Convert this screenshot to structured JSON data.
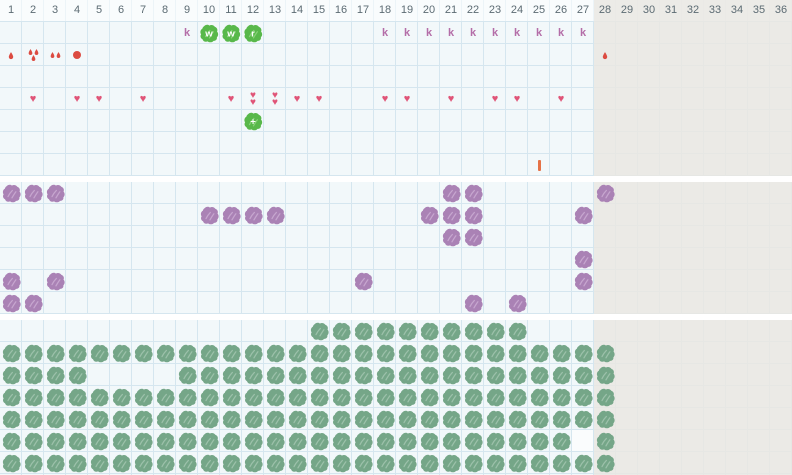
{
  "header": {
    "columns": [
      "1",
      "2",
      "3",
      "4",
      "5",
      "6",
      "7",
      "8",
      "9",
      "10",
      "11",
      "12",
      "13",
      "14",
      "15",
      "16",
      "17",
      "18",
      "19",
      "20",
      "21",
      "22",
      "23",
      "24",
      "25",
      "26",
      "27",
      "28",
      "29",
      "30",
      "31",
      "32",
      "33",
      "34",
      "35",
      "36"
    ]
  },
  "colors": {
    "cell_bg": "#f2f8fa",
    "grid_line": "#d5e6ef",
    "disabled_bg": "#ecebe8",
    "gap_bg": "#ffffff",
    "header_text": "#5c6b73",
    "k_label": "#b46ea8",
    "bright_green": "#58b84a",
    "bright_green_streak": "#8fd57f",
    "heart": "#e05578",
    "droplet": "#dc4b41",
    "orange_marker": "#e57247",
    "purple": "#aa82b5",
    "purple_streak": "#cbadd3",
    "sage": "#75a688",
    "sage_streak": "#a3c6b0",
    "plant_letter_text": "#ffffff"
  },
  "grid": {
    "columns": 36,
    "disabled_from_column": 28,
    "sections": [
      {
        "name": "top-calendar",
        "rows": [
          [
            {
              "type": "k-label",
              "text": "k",
              "cols": [
                9
              ]
            },
            {
              "type": "bright-plant",
              "text": "w",
              "cols": [
                10,
                11
              ]
            },
            {
              "type": "bright-plant",
              "text": "r",
              "cols": [
                12
              ]
            },
            {
              "type": "k-label",
              "text": "k",
              "cols": [
                18,
                19,
                20,
                21,
                22,
                23,
                24,
                25,
                26,
                27
              ]
            }
          ],
          [
            {
              "type": "droplet",
              "cols": [
                1
              ]
            },
            {
              "type": "droplet-triple",
              "cols": [
                2
              ]
            },
            {
              "type": "droplet-double",
              "cols": [
                3
              ]
            },
            {
              "type": "dot",
              "cols": [
                4
              ]
            },
            {
              "type": "droplet",
              "cols": [
                28
              ]
            }
          ],
          [],
          [
            {
              "type": "heart",
              "cols": [
                2,
                4,
                5,
                7,
                11,
                14,
                15,
                18,
                19,
                21,
                23,
                24,
                26
              ]
            },
            {
              "type": "heart-double",
              "cols": [
                12,
                13
              ]
            }
          ],
          [
            {
              "type": "bright-plant",
              "text": "+",
              "cols": [
                12
              ]
            }
          ],
          [],
          [
            {
              "type": "orange-marker",
              "cols": [
                25
              ]
            }
          ]
        ]
      },
      {
        "name": "middle-bed",
        "rows": [
          [
            {
              "type": "purple-plant",
              "cols": [
                1,
                2,
                3,
                21,
                22,
                28
              ]
            }
          ],
          [
            {
              "type": "purple-plant",
              "cols": [
                10,
                11,
                12,
                13,
                20,
                21,
                22,
                27
              ]
            }
          ],
          [
            {
              "type": "purple-plant",
              "cols": [
                21,
                22
              ]
            }
          ],
          [
            {
              "type": "purple-plant",
              "cols": [
                27
              ]
            }
          ],
          [
            {
              "type": "purple-plant",
              "cols": [
                1,
                3,
                17,
                27
              ]
            }
          ],
          [
            {
              "type": "purple-plant",
              "cols": [
                1,
                2,
                22,
                24
              ]
            }
          ]
        ]
      },
      {
        "name": "bottom-bed",
        "rows": [
          [
            {
              "type": "sage-plant",
              "cols": [
                15,
                16,
                17,
                18,
                19,
                20,
                21,
                22,
                23,
                24
              ]
            }
          ],
          [
            {
              "type": "sage-plant",
              "cols": [
                1,
                2,
                3,
                4,
                5,
                6,
                7,
                8,
                9,
                10,
                11,
                12,
                13,
                14,
                15,
                16,
                17,
                18,
                19,
                20,
                21,
                22,
                23,
                24,
                25,
                26,
                27,
                28
              ]
            }
          ],
          [
            {
              "type": "sage-plant",
              "cols": [
                1,
                2,
                3,
                4,
                9,
                10,
                11,
                12,
                13,
                14,
                15,
                16,
                17,
                18,
                19,
                20,
                21,
                22,
                23,
                24,
                25,
                26,
                27,
                28
              ]
            }
          ],
          [
            {
              "type": "sage-plant",
              "cols": [
                1,
                2,
                3,
                4,
                5,
                6,
                7,
                8,
                9,
                10,
                11,
                12,
                13,
                14,
                15,
                16,
                17,
                18,
                19,
                20,
                21,
                22,
                23,
                24,
                25,
                26,
                27,
                28
              ]
            }
          ],
          [
            {
              "type": "sage-plant",
              "cols": [
                1,
                2,
                3,
                4,
                5,
                6,
                7,
                8,
                9,
                10,
                11,
                12,
                13,
                14,
                15,
                16,
                17,
                18,
                19,
                20,
                21,
                22,
                23,
                24,
                25,
                26,
                27,
                28
              ]
            }
          ],
          [
            {
              "type": "sage-plant",
              "cols": [
                1,
                2,
                3,
                4,
                5,
                6,
                7,
                8,
                9,
                10,
                11,
                12,
                13,
                14,
                15,
                16,
                17,
                18,
                19,
                20,
                21,
                22,
                23,
                24,
                25,
                26,
                28
              ]
            },
            {
              "type": "cleared-cell",
              "cols": [
                27
              ]
            }
          ],
          [
            {
              "type": "sage-plant",
              "cols": [
                1,
                2,
                3,
                4,
                5,
                6,
                7,
                8,
                9,
                10,
                11,
                12,
                13,
                14,
                15,
                16,
                17,
                18,
                19,
                20,
                21,
                22,
                23,
                24,
                25,
                26,
                27,
                28
              ]
            }
          ]
        ]
      }
    ]
  }
}
